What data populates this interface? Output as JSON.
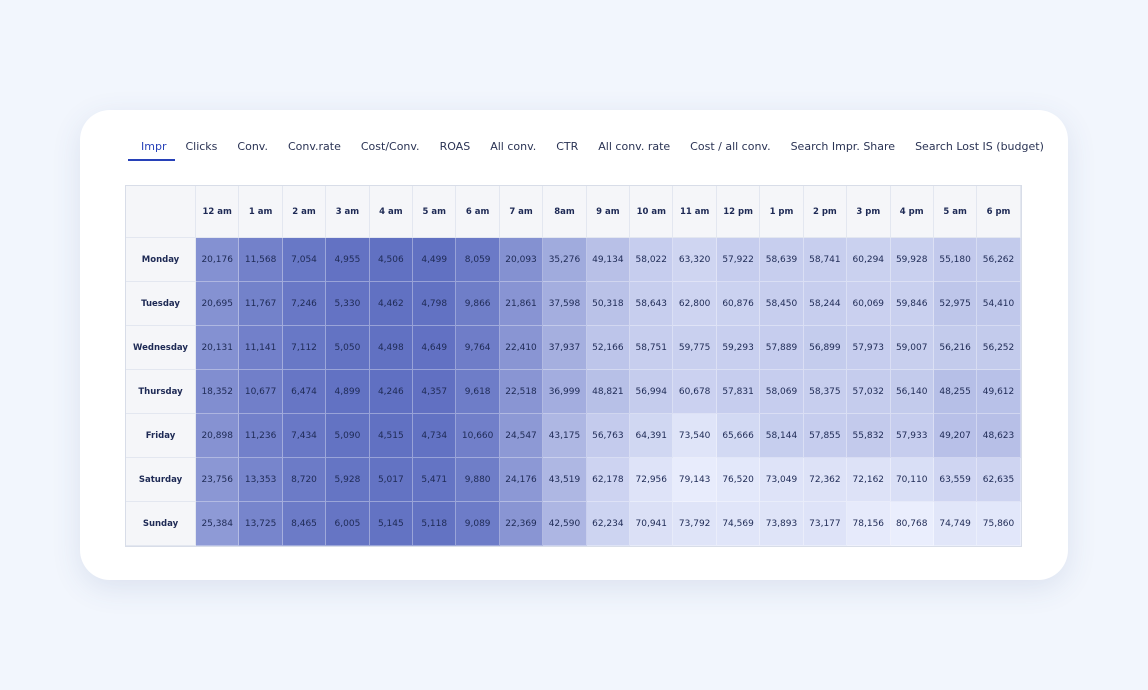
{
  "tabs": [
    "Impr",
    "Clicks",
    "Conv.",
    "Conv.rate",
    "Cost/Conv.",
    "ROAS",
    "All conv.",
    "CTR",
    "All conv. rate",
    "Cost / all conv.",
    "Search Impr. Share",
    "Search Lost IS (budget)"
  ],
  "table": {
    "columns": [
      "12 am",
      "1 am",
      "2 am",
      "3 am",
      "4 am",
      "5 am",
      "6 am",
      "7 am",
      "8am",
      "9 am",
      "10 am",
      "11 am",
      "12 pm",
      "1 pm",
      "2 pm",
      "3 pm",
      "4 pm",
      "5 am",
      "6 pm"
    ],
    "rows": [
      {
        "label": "Monday",
        "cells": [
          "20,176",
          "11,568",
          "7,054",
          "4,955",
          "4,506",
          "4,499",
          "8,059",
          "20,093",
          "35,276",
          "49,134",
          "58,022",
          "63,320",
          "57,922",
          "58,639",
          "58,741",
          "60,294",
          "59,928",
          "55,180",
          "56,262"
        ]
      },
      {
        "label": "Tuesday",
        "cells": [
          "20,695",
          "11,767",
          "7,246",
          "5,330",
          "4,462",
          "4,798",
          "9,866",
          "21,861",
          "37,598",
          "50,318",
          "58,643",
          "62,800",
          "60,876",
          "58,450",
          "58,244",
          "60,069",
          "59,846",
          "52,975",
          "54,410"
        ]
      },
      {
        "label": "Wednesday",
        "cells": [
          "20,131",
          "11,141",
          "7,112",
          "5,050",
          "4,498",
          "4,649",
          "9,764",
          "22,410",
          "37,937",
          "52,166",
          "58,751",
          "59,775",
          "59,293",
          "57,889",
          "56,899",
          "57,973",
          "59,007",
          "56,216",
          "56,252"
        ]
      },
      {
        "label": "Thursday",
        "cells": [
          "18,352",
          "10,677",
          "6,474",
          "4,899",
          "4,246",
          "4,357",
          "9,618",
          "22,518",
          "36,999",
          "48,821",
          "56,994",
          "60,678",
          "57,831",
          "58,069",
          "58,375",
          "57,032",
          "56,140",
          "48,255",
          "49,612"
        ]
      },
      {
        "label": "Friday",
        "cells": [
          "20,898",
          "11,236",
          "7,434",
          "5,090",
          "4,515",
          "4,734",
          "10,660",
          "24,547",
          "43,175",
          "56,763",
          "64,391",
          "73,540",
          "65,666",
          "58,144",
          "57,855",
          "55,832",
          "57,933",
          "49,207",
          "48,623"
        ]
      },
      {
        "label": "Saturday",
        "cells": [
          "23,756",
          "13,353",
          "8,720",
          "5,928",
          "5,017",
          "5,471",
          "9,880",
          "24,176",
          "43,519",
          "62,178",
          "72,956",
          "79,143",
          "76,520",
          "73,049",
          "72,362",
          "72,162",
          "70,110",
          "63,559",
          "62,635"
        ]
      },
      {
        "label": "Sunday",
        "cells": [
          "25,384",
          "13,725",
          "8,465",
          "6,005",
          "5,145",
          "5,118",
          "9,089",
          "22,369",
          "42,590",
          "62,234",
          "70,941",
          "73,792",
          "74,569",
          "73,893",
          "73,177",
          "78,156",
          "80,768",
          "74,749",
          "75,860"
        ]
      }
    ]
  }
}
